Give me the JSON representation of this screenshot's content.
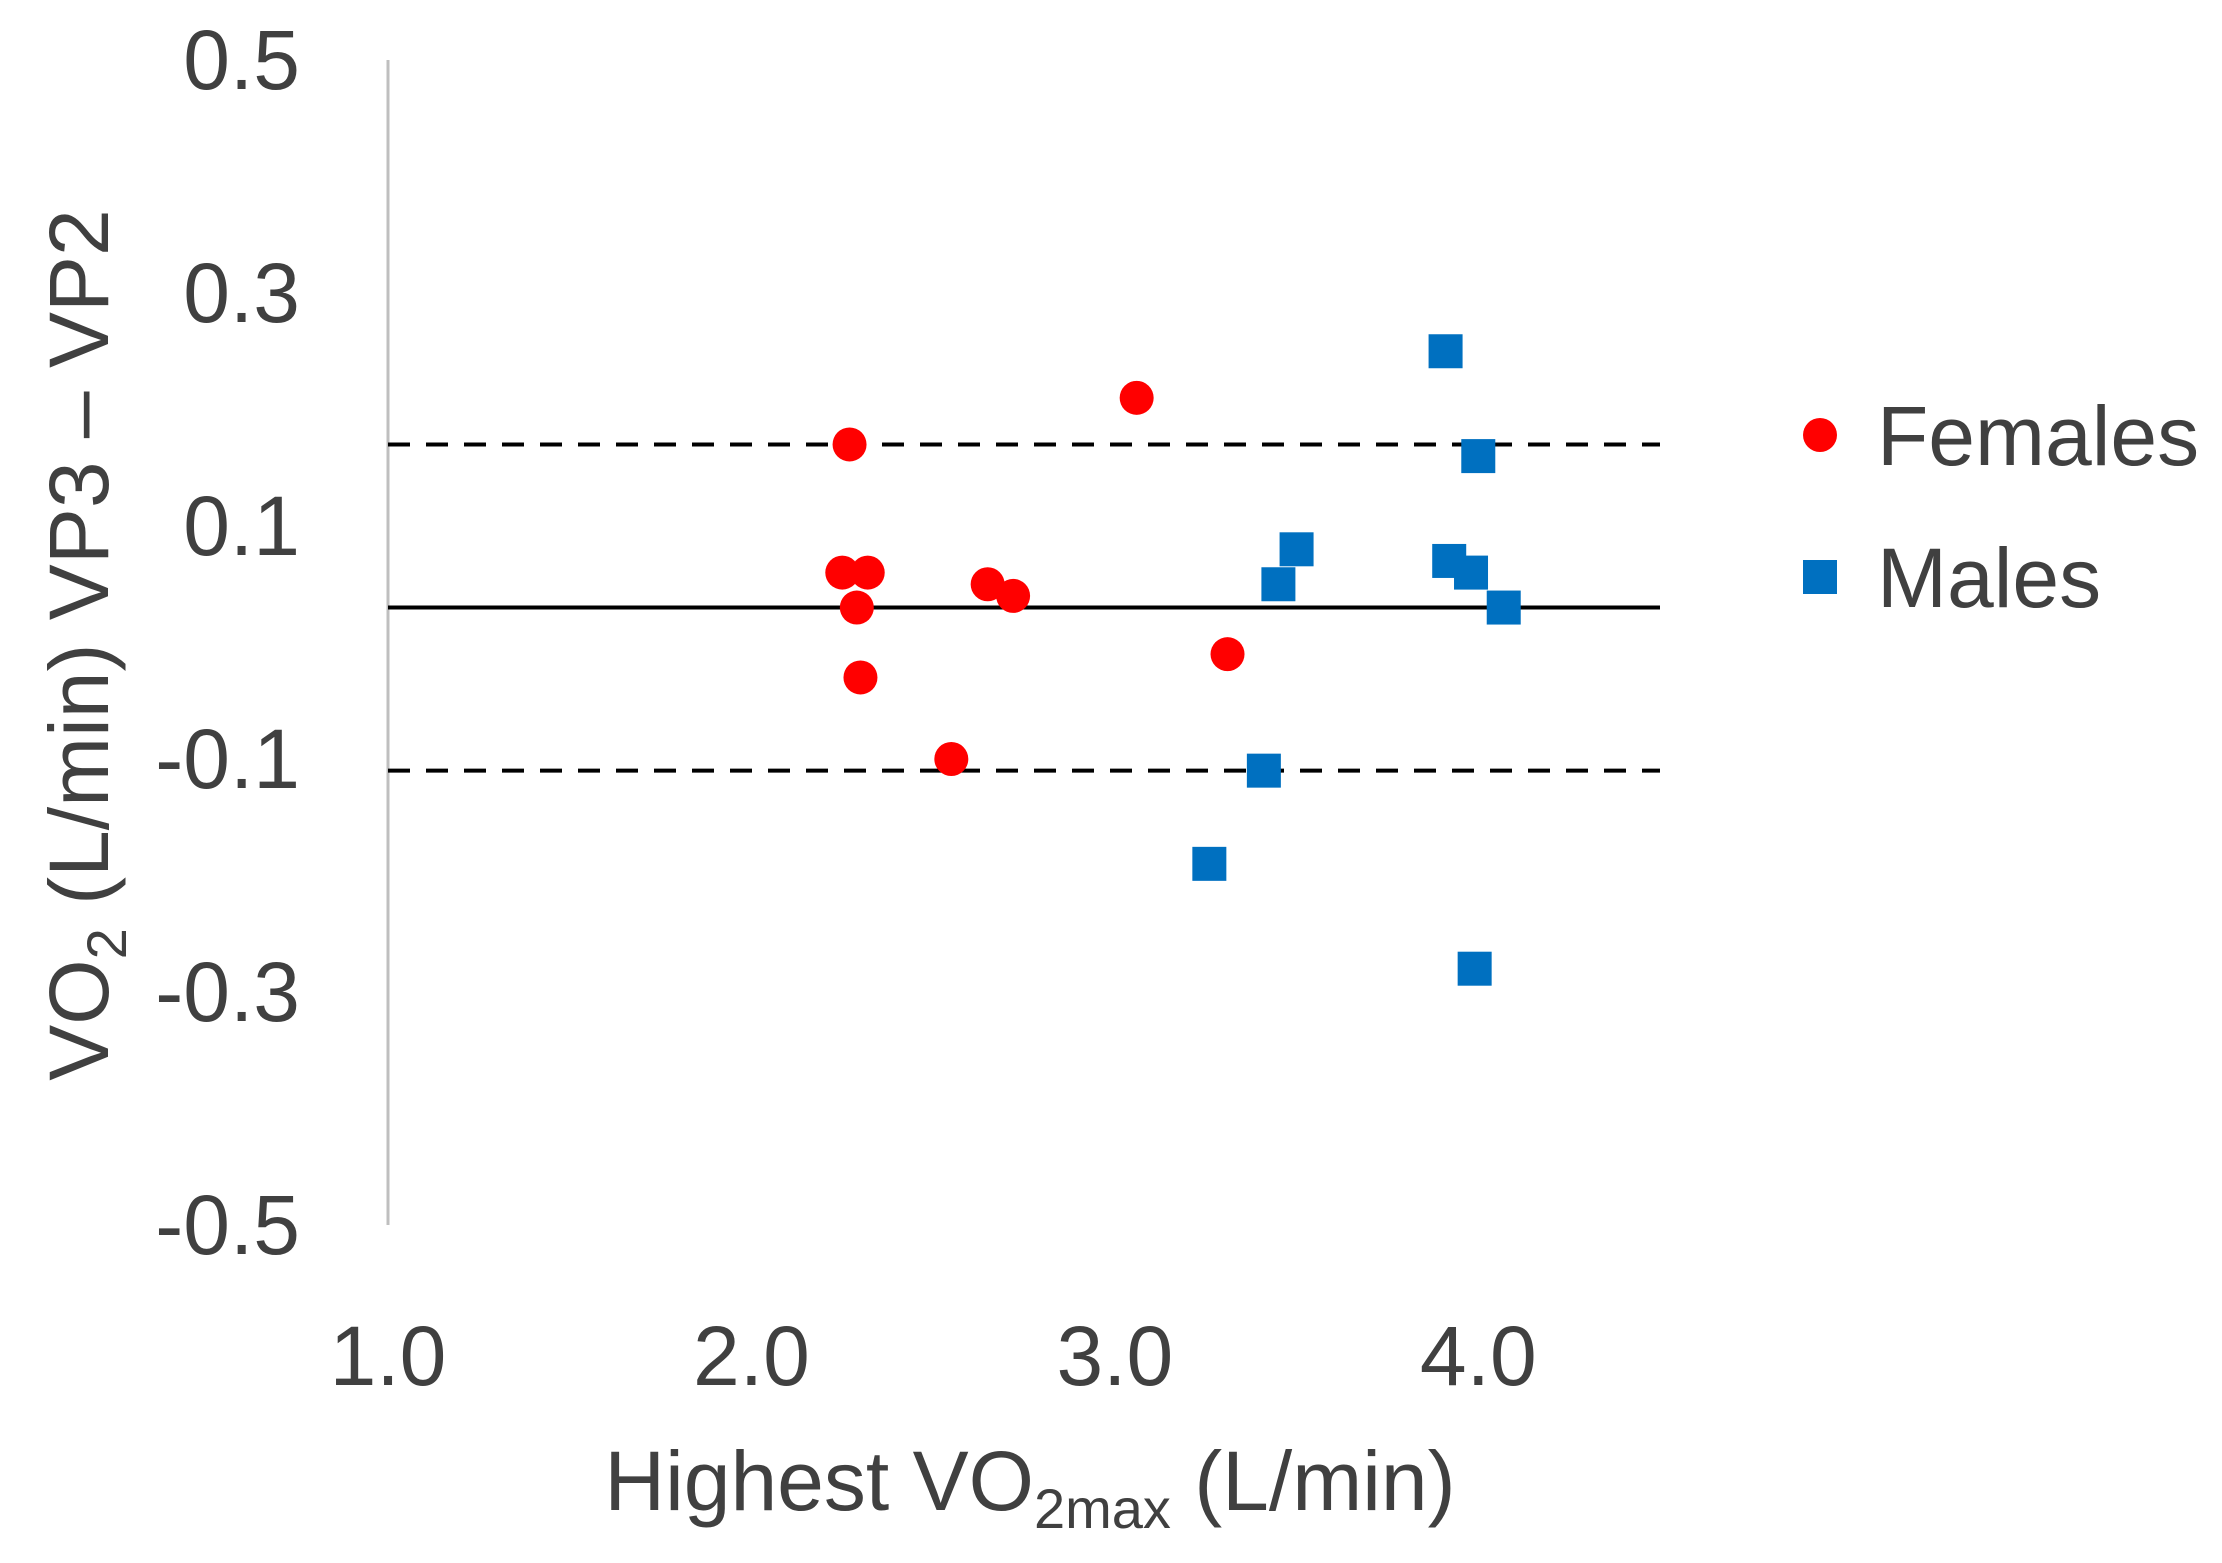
{
  "chart_data": {
    "type": "scatter",
    "title": "",
    "xlabel": {
      "main": "Highest VO",
      "sub": "2max",
      "unit": " (L/min)"
    },
    "ylabel": {
      "main": "VO",
      "sub": "2",
      "unit": " (L/min) VP3 – VP2"
    },
    "xlim": [
      1.0,
      4.5
    ],
    "ylim": [
      -0.5,
      0.5
    ],
    "x_ticks": [
      1.0,
      2.0,
      3.0,
      4.0
    ],
    "x_tick_labels": [
      "1.0",
      "2.0",
      "3.0",
      "4.0"
    ],
    "y_ticks": [
      0.5,
      0.3,
      0.1,
      -0.1,
      -0.3,
      -0.5
    ],
    "y_tick_labels": [
      "0.5",
      "0.3",
      "0.1",
      "-0.1",
      "-0.3",
      "-0.5"
    ],
    "reference_lines": [
      {
        "name": "mean",
        "y": 0.03,
        "style": "solid"
      },
      {
        "name": "upper-limit",
        "y": 0.17,
        "style": "dashed"
      },
      {
        "name": "lower-limit",
        "y": -0.11,
        "style": "dashed"
      }
    ],
    "series": [
      {
        "name": "Females",
        "marker": "circle",
        "color": "#ff0000",
        "points": [
          {
            "x": 2.27,
            "y": 0.17
          },
          {
            "x": 2.25,
            "y": 0.06
          },
          {
            "x": 2.32,
            "y": 0.06
          },
          {
            "x": 2.29,
            "y": 0.03
          },
          {
            "x": 2.3,
            "y": -0.03
          },
          {
            "x": 2.65,
            "y": 0.05
          },
          {
            "x": 2.72,
            "y": 0.04
          },
          {
            "x": 2.55,
            "y": -0.1
          },
          {
            "x": 3.06,
            "y": 0.21
          },
          {
            "x": 3.31,
            "y": -0.01
          }
        ]
      },
      {
        "name": "Males",
        "marker": "square",
        "color": "#0070c0",
        "points": [
          {
            "x": 3.91,
            "y": 0.25
          },
          {
            "x": 4.0,
            "y": 0.16
          },
          {
            "x": 3.5,
            "y": 0.08
          },
          {
            "x": 3.45,
            "y": 0.05
          },
          {
            "x": 3.92,
            "y": 0.07
          },
          {
            "x": 3.98,
            "y": 0.06
          },
          {
            "x": 4.07,
            "y": 0.03
          },
          {
            "x": 3.41,
            "y": -0.11
          },
          {
            "x": 3.26,
            "y": -0.19
          },
          {
            "x": 3.99,
            "y": -0.28
          }
        ]
      }
    ],
    "legend": {
      "position": "right",
      "entries": [
        "Females",
        "Males"
      ]
    }
  }
}
